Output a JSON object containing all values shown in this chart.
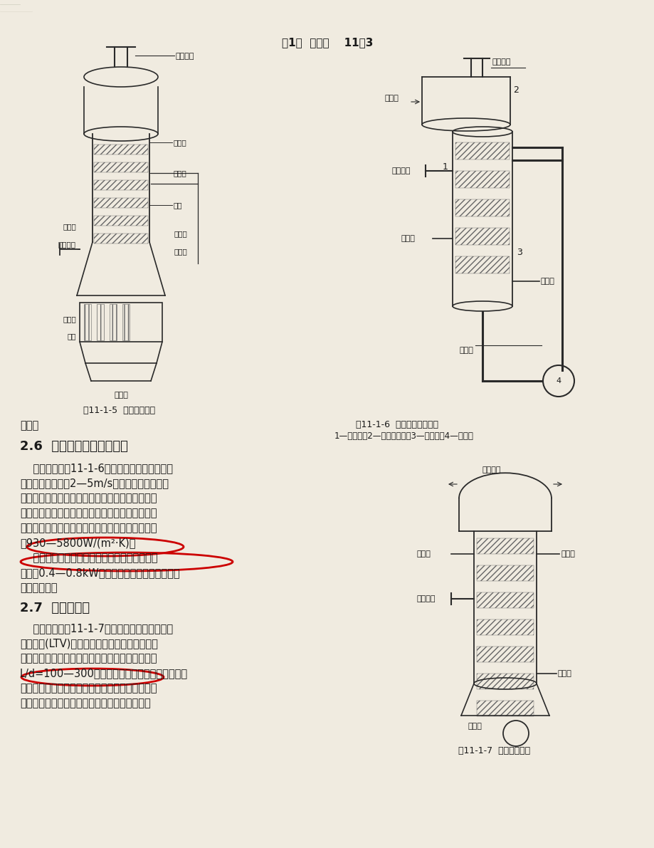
{
  "page_header": "第1章  蒸发器    11－3",
  "fig_caption_left": "图11-1-5  列文式蒸发器",
  "fig_caption_right_title": "图11-1-6  强制循环型蒸发器",
  "fig_caption_right_sub": "1—加热室；2—蒸汽分离室；3—循环管；4—循环泵",
  "fig_caption_bottom": "图11-1-7  升膜式蒸发器",
  "section_26_title": "2.6  强制循环型长管蒸发器",
  "reduce_text": "减小。",
  "bg_color": "#f0ebe0",
  "text_color": "#1a1a1a",
  "circle_color": "#cc0000"
}
